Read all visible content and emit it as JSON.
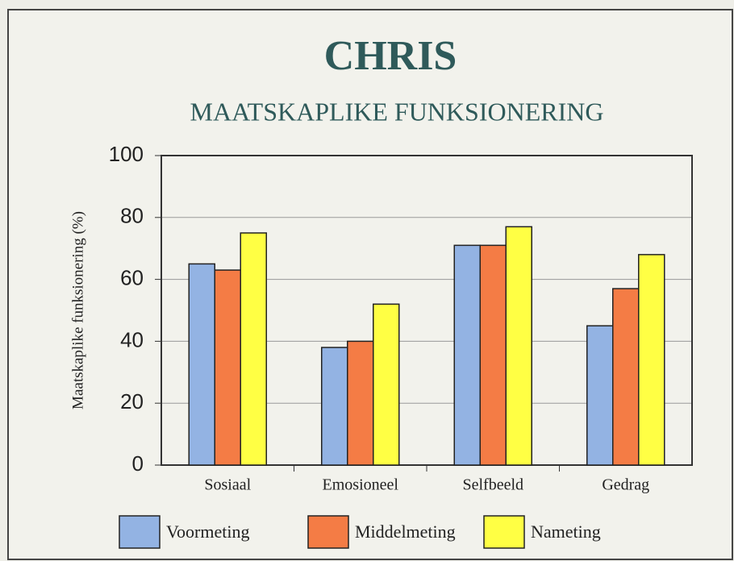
{
  "chart_data": {
    "type": "bar",
    "title": "CHRIS",
    "subtitle": "MAATSKAPLIKE FUNKSIONERING",
    "y_label": "Maatskaplike funksionering (%)",
    "categories": [
      "Sosiaal",
      "Emosioneel",
      "Selfbeeld",
      "Gedrag"
    ],
    "series": [
      {
        "name": "Voormeting",
        "color": "#93b3e3",
        "values": [
          65,
          38,
          71,
          45
        ]
      },
      {
        "name": "Middelmeting",
        "color": "#f47c45",
        "values": [
          63,
          40,
          71,
          57
        ]
      },
      {
        "name": "Nameting",
        "color": "#ffff44",
        "values": [
          75,
          52,
          77,
          68
        ]
      }
    ],
    "ylim": [
      0,
      100
    ],
    "yticks": [
      0,
      20,
      40,
      60,
      80,
      100
    ],
    "grid": true,
    "legend": "bottom"
  }
}
